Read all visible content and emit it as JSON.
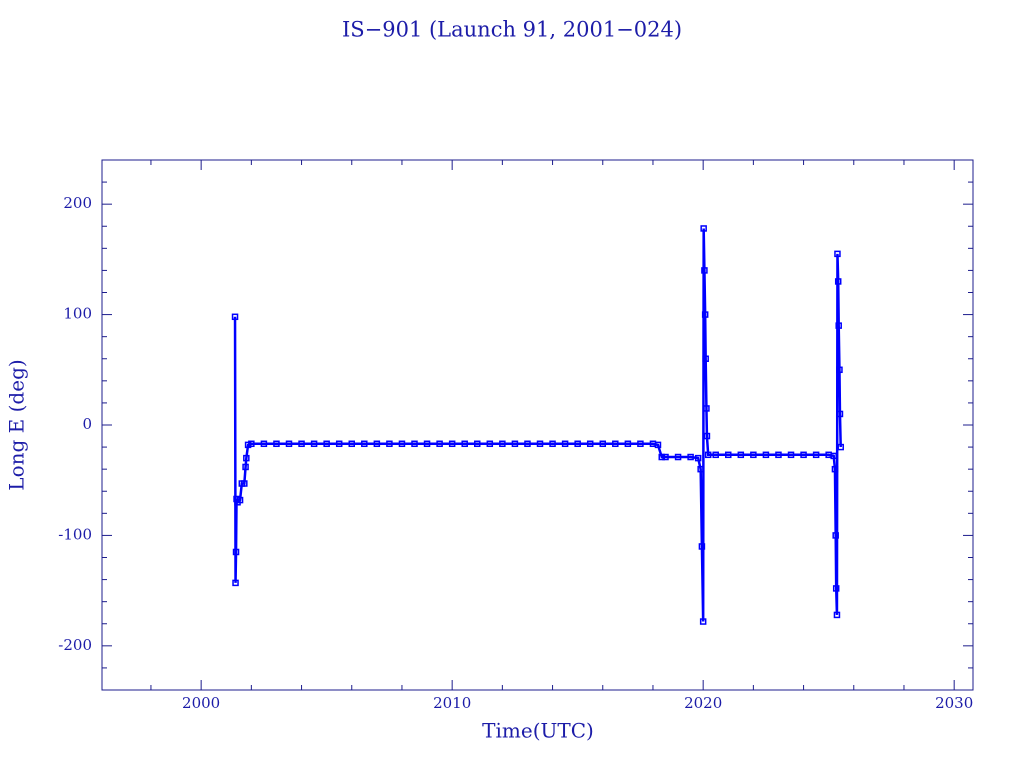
{
  "chart_data": {
    "type": "line",
    "title": "IS−901 (Launch 91, 2001−024)",
    "x_label": "Time(UTC)",
    "y_label": "Long E (deg)",
    "color": "#0000ff",
    "marker": "square",
    "x": [
      2001.35,
      2001.37,
      2001.39,
      2001.41,
      2001.45,
      2001.55,
      2001.62,
      2001.72,
      2001.77,
      2001.8,
      2001.87,
      2002.0,
      2002.5,
      2003,
      2003.5,
      2004,
      2004.5,
      2005,
      2005.5,
      2006,
      2006.5,
      2007,
      2007.5,
      2008,
      2008.5,
      2009,
      2009.5,
      2010,
      2010.5,
      2011,
      2011.5,
      2012,
      2012.5,
      2013,
      2013.5,
      2014,
      2014.5,
      2015,
      2015.5,
      2016,
      2016.5,
      2017,
      2017.5,
      2018,
      2018.2,
      2018.35,
      2018.5,
      2019,
      2019.5,
      2019.8,
      2019.9,
      2019.95,
      2020.0,
      2020.02,
      2020.05,
      2020.08,
      2020.1,
      2020.13,
      2020.15,
      2020.2,
      2020.5,
      2021,
      2021.5,
      2022,
      2022.5,
      2023,
      2023.5,
      2024,
      2024.5,
      2025,
      2025.2,
      2025.25,
      2025.28,
      2025.3,
      2025.33,
      2025.35,
      2025.38,
      2025.4,
      2025.43,
      2025.45,
      2025.48
    ],
    "values": [
      98,
      -143,
      -115,
      -67,
      -70,
      -68,
      -53,
      -53,
      -38,
      -30,
      -18,
      -17,
      -17,
      -17,
      -17,
      -17,
      -17,
      -17,
      -17,
      -17,
      -17,
      -17,
      -17,
      -17,
      -17,
      -17,
      -17,
      -17,
      -17,
      -17,
      -17,
      -17,
      -17,
      -17,
      -17,
      -17,
      -17,
      -17,
      -17,
      -17,
      -17,
      -17,
      -17,
      -17,
      -18,
      -29,
      -29,
      -29,
      -29,
      -30,
      -40,
      -110,
      -178,
      178,
      140,
      100,
      60,
      15,
      -10,
      -27,
      -27,
      -27,
      -27,
      -27,
      -27,
      -27,
      -27,
      -27,
      -27,
      -27,
      -28,
      -40,
      -100,
      -148,
      -172,
      155,
      130,
      90,
      50,
      10,
      -20
    ],
    "xlim": [
      1996.05,
      2030.75
    ],
    "xticks": [
      2000,
      2010,
      2020,
      2030
    ],
    "xticks_minor": [
      1998,
      2002,
      2004,
      2006,
      2008,
      2012,
      2014,
      2016,
      2018,
      2022,
      2024,
      2026,
      2028
    ],
    "ylim": [
      -240,
      240
    ],
    "yticks": [
      -200,
      -100,
      0,
      100,
      200
    ],
    "yticks_minor": [
      -220,
      -180,
      -160,
      -140,
      -120,
      -80,
      -60,
      -40,
      -20,
      20,
      40,
      60,
      80,
      120,
      140,
      160,
      180,
      220
    ]
  }
}
